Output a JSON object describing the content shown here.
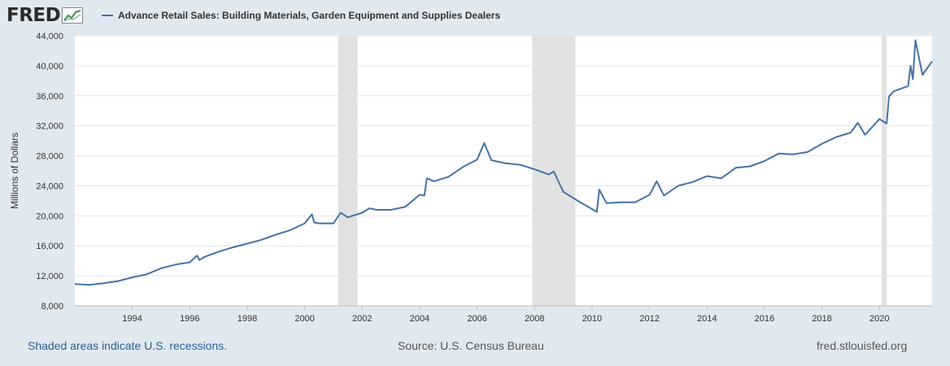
{
  "header": {
    "logo_text": "FRED",
    "logo_icon": "chart-line-icon",
    "series_title": "Advance Retail Sales: Building Materials, Garden Equipment and Supplies Dealers"
  },
  "footer": {
    "recession_note": "Shaded areas indicate U.S. recessions.",
    "source": "Source: U.S. Census Bureau",
    "site": "fred.stlouisfed.org"
  },
  "colors": {
    "line": "#4572a7",
    "recession": "#e1e1e1",
    "background": "#e1e9f0"
  },
  "chart_data": {
    "type": "line",
    "ylabel": "Millions of Dollars",
    "ylim": [
      8000,
      44000
    ],
    "yticks": [
      8000,
      12000,
      16000,
      20000,
      24000,
      28000,
      32000,
      36000,
      40000,
      44000
    ],
    "ytick_labels": [
      "8,000",
      "12,000",
      "16,000",
      "20,000",
      "24,000",
      "28,000",
      "32,000",
      "36,000",
      "40,000",
      "44,000"
    ],
    "xlim": [
      "1992-01",
      "2021-11"
    ],
    "xticks": [
      "1994",
      "1996",
      "1998",
      "2000",
      "2002",
      "2004",
      "2006",
      "2008",
      "2010",
      "2012",
      "2014",
      "2016",
      "2018",
      "2020"
    ],
    "grid": "horizontal",
    "recessions": [
      [
        "2001-03",
        "2001-11"
      ],
      [
        "2007-12",
        "2009-06"
      ],
      [
        "2020-02",
        "2020-04"
      ]
    ],
    "series": [
      {
        "name": "Advance Retail Sales: Building Materials, Garden Equipment and Supplies Dealers",
        "x": [
          "1992-01",
          "1992-07",
          "1993-01",
          "1993-07",
          "1994-01",
          "1994-07",
          "1995-01",
          "1995-07",
          "1996-01",
          "1996-04",
          "1996-05",
          "1996-07",
          "1997-01",
          "1997-07",
          "1998-01",
          "1998-07",
          "1999-01",
          "1999-07",
          "2000-01",
          "2000-04",
          "2000-05",
          "2000-07",
          "2001-01",
          "2001-04",
          "2001-07",
          "2002-01",
          "2002-04",
          "2002-07",
          "2003-01",
          "2003-07",
          "2004-01",
          "2004-03",
          "2004-04",
          "2004-07",
          "2005-01",
          "2005-07",
          "2006-01",
          "2006-04",
          "2006-07",
          "2007-01",
          "2007-07",
          "2008-01",
          "2008-07",
          "2008-09",
          "2009-01",
          "2009-07",
          "2010-01",
          "2010-03",
          "2010-04",
          "2010-07",
          "2011-01",
          "2011-07",
          "2012-01",
          "2012-04",
          "2012-07",
          "2013-01",
          "2013-07",
          "2014-01",
          "2014-07",
          "2015-01",
          "2015-07",
          "2016-01",
          "2016-07",
          "2017-01",
          "2017-07",
          "2018-01",
          "2018-07",
          "2019-01",
          "2019-04",
          "2019-07",
          "2020-01",
          "2020-04",
          "2020-05",
          "2020-07",
          "2021-01",
          "2021-02",
          "2021-03",
          "2021-04",
          "2021-07",
          "2021-11"
        ],
        "values": [
          10900,
          10800,
          11000,
          11300,
          11800,
          12200,
          13000,
          13500,
          13800,
          14700,
          14100,
          14500,
          15200,
          15800,
          16300,
          16800,
          17500,
          18100,
          19000,
          20200,
          19100,
          19000,
          19000,
          20400,
          19800,
          20400,
          21000,
          20800,
          20800,
          21200,
          22800,
          22700,
          25000,
          24600,
          25200,
          26500,
          27500,
          29700,
          27400,
          27000,
          26800,
          26200,
          25500,
          25900,
          23200,
          22000,
          20900,
          20500,
          23500,
          21700,
          21800,
          21800,
          22800,
          24600,
          22700,
          24000,
          24500,
          25300,
          25000,
          26400,
          26600,
          27300,
          28300,
          28200,
          28500,
          29600,
          30500,
          31100,
          32400,
          30800,
          32900,
          32300,
          35900,
          36600,
          37300,
          40000,
          38200,
          43400,
          38800,
          40600
        ]
      }
    ]
  }
}
